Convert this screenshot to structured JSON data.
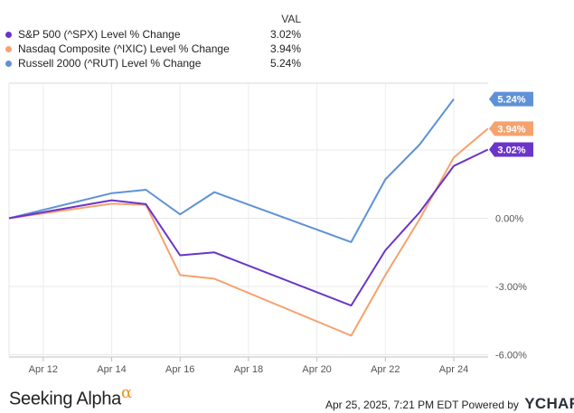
{
  "legend": {
    "header": "VAL",
    "rows": [
      {
        "name": "S&P 500 (^SPX) Level % Change",
        "value": "3.02%",
        "color": "#6a35c8"
      },
      {
        "name": "Nasdaq Composite (^IXIC) Level % Change",
        "value": "3.94%",
        "color": "#f6a26e"
      },
      {
        "name": "Russell 2000 (^RUT) Level % Change",
        "value": "5.24%",
        "color": "#5e92d6"
      }
    ]
  },
  "chart_data": {
    "type": "line",
    "title": "",
    "xlabel": "",
    "ylabel": "",
    "x": [
      "2025-04-11",
      "2025-04-14",
      "2025-04-15",
      "2025-04-16",
      "2025-04-17",
      "2025-04-21",
      "2025-04-22",
      "2025-04-23",
      "2025-04-24",
      "2025-04-25"
    ],
    "x_ticks": [
      "Apr 12",
      "Apr 14",
      "Apr 16",
      "Apr 18",
      "Apr 20",
      "Apr 22",
      "Apr 24"
    ],
    "y_ticks": [
      "0.00%",
      "-3.00%",
      "-6.00%"
    ],
    "ylim": [
      -6.2,
      7.5
    ],
    "grid": true,
    "gridline_values": [
      0,
      -3,
      -6,
      3,
      6
    ],
    "series": [
      {
        "name": "S&P 500 (^SPX) Level % Change",
        "color": "#6a35c8",
        "end_label": "3.02%",
        "values": [
          0.0,
          0.79,
          0.62,
          -1.63,
          -1.5,
          -3.84,
          -1.41,
          0.26,
          2.3,
          3.02
        ]
      },
      {
        "name": "Nasdaq Composite (^IXIC) Level % Change",
        "color": "#f6a26e",
        "end_label": "3.94%",
        "values": [
          0.0,
          0.64,
          0.59,
          -2.5,
          -2.66,
          -5.16,
          -2.5,
          -0.04,
          2.67,
          3.94
        ]
      },
      {
        "name": "Russell 2000 (^RUT) Level % Change",
        "color": "#5e92d6",
        "end_label": "5.24%",
        "values": [
          0.0,
          1.1,
          1.25,
          0.17,
          1.15,
          -1.05,
          1.71,
          3.24,
          5.24,
          null
        ]
      }
    ]
  },
  "footer": {
    "brand": "Seeking Alpha",
    "brand_symbol": "α",
    "timestamp": "Apr 25, 2025, 7:21 PM EDT",
    "powered_by": "Powered by",
    "provider": "YCHARTS"
  }
}
